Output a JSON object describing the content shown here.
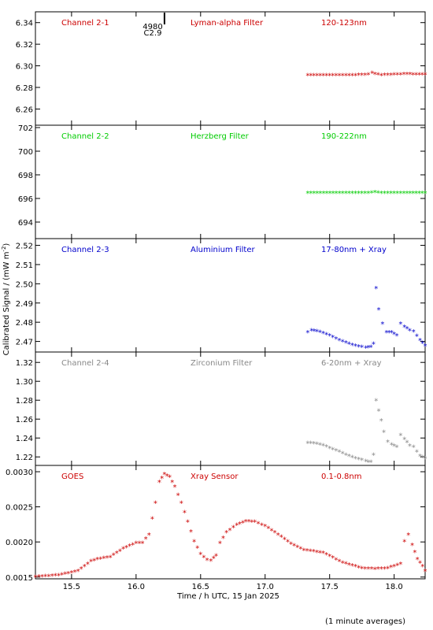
{
  "xlabel": "Time / h UTC, 15 Jan 2025",
  "ylabel": "Calibrated Signal / (mW m",
  "ylabel_sup": "-2",
  "ylabel_end": ")",
  "footnote": "(1 minute averages)",
  "flare_marker": {
    "x": 16.22,
    "label1": "4980",
    "label2": "C2.9"
  },
  "x_axis": {
    "min": 15.22,
    "max": 18.24,
    "ticks": [
      15.5,
      16.0,
      16.5,
      17.0,
      17.5,
      18.0
    ],
    "tick_labels": [
      "15.5",
      "16.0",
      "16.5",
      "17.0",
      "17.5",
      "18.0"
    ]
  },
  "panel_titles": [
    {
      "name": "Channel 2-1",
      "filter": "Lyman-alpha Filter",
      "band": "120-123nm",
      "color": "#cc0000"
    },
    {
      "name": "Channel 2-2",
      "filter": "Herzberg Filter",
      "band": "190-222nm",
      "color": "#00cc00"
    },
    {
      "name": "Channel 2-3",
      "filter": "Aluminium Filter",
      "band": "17-80nm + Xray",
      "color": "#0000cc"
    },
    {
      "name": "Channel 2-4",
      "filter": "Zirconium Filter",
      "band": "6-20nm + Xray",
      "color": "#888888"
    },
    {
      "name": "GOES",
      "filter": "Xray Sensor",
      "band": "0.1-0.8nm",
      "color": "#cc0000"
    }
  ],
  "chart_data": [
    {
      "type": "scatter",
      "title": "Channel 2-1",
      "color": "#cc0000",
      "ylim": [
        6.245,
        6.35
      ],
      "yticks": [
        6.26,
        6.28,
        6.3,
        6.32,
        6.34
      ],
      "ytick_labels": [
        "6.26",
        "6.28",
        "6.30",
        "6.32",
        "6.34"
      ],
      "series": [
        {
          "name": "Channel 2-1",
          "points": [
            [
              17.33,
              6.291
            ],
            [
              17.5,
              6.291
            ],
            [
              17.7,
              6.291
            ],
            [
              17.8,
              6.2915
            ],
            [
              17.83,
              6.293
            ],
            [
              17.85,
              6.292
            ],
            [
              17.9,
              6.291
            ],
            [
              18.0,
              6.2915
            ],
            [
              18.1,
              6.292
            ],
            [
              18.24,
              6.2915
            ]
          ]
        }
      ]
    },
    {
      "type": "scatter",
      "title": "Channel 2-2",
      "color": "#00cc00",
      "ylim": [
        692.6,
        702.2
      ],
      "yticks": [
        694,
        696,
        698,
        700,
        702
      ],
      "ytick_labels": [
        "694",
        "696",
        "698",
        "700",
        "702"
      ],
      "series": [
        {
          "name": "Channel 2-2",
          "points": [
            [
              17.33,
              696.45
            ],
            [
              17.6,
              696.45
            ],
            [
              17.8,
              696.45
            ],
            [
              17.85,
              696.5
            ],
            [
              17.9,
              696.45
            ],
            [
              18.1,
              696.45
            ],
            [
              18.24,
              696.45
            ]
          ]
        }
      ]
    },
    {
      "type": "scatter",
      "title": "Channel 2-3",
      "color": "#0000cc",
      "ylim": [
        2.4645,
        2.5235
      ],
      "yticks": [
        2.47,
        2.48,
        2.49,
        2.5,
        2.51,
        2.52
      ],
      "ytick_labels": [
        "2.47",
        "2.48",
        "2.49",
        "2.50",
        "2.51",
        "2.52"
      ],
      "series": [
        {
          "name": "Channel 2-3",
          "points": [
            [
              17.33,
              2.4745
            ],
            [
              17.36,
              2.4755
            ],
            [
              17.4,
              2.4752
            ],
            [
              17.45,
              2.4742
            ],
            [
              17.5,
              2.4728
            ],
            [
              17.55,
              2.4712
            ],
            [
              17.6,
              2.4698
            ],
            [
              17.65,
              2.4685
            ],
            [
              17.7,
              2.4675
            ],
            [
              17.75,
              2.467
            ],
            [
              17.78,
              2.4665
            ],
            [
              17.8,
              2.4668
            ],
            [
              17.82,
              2.467
            ],
            [
              17.84,
              2.4685
            ],
            [
              17.86,
              2.4975
            ],
            [
              17.88,
              2.4865
            ],
            [
              17.91,
              2.479
            ],
            [
              17.94,
              2.4745
            ],
            [
              17.98,
              2.4745
            ],
            [
              18.02,
              2.473
            ],
            [
              18.05,
              2.479
            ],
            [
              18.08,
              2.4775
            ],
            [
              18.12,
              2.4755
            ],
            [
              18.15,
              2.475
            ],
            [
              18.2,
              2.4705
            ],
            [
              18.24,
              2.4675
            ]
          ]
        }
      ]
    },
    {
      "type": "scatter",
      "title": "Channel 2-4",
      "color": "#888888",
      "ylim": [
        1.211,
        1.331
      ],
      "yticks": [
        1.22,
        1.24,
        1.26,
        1.28,
        1.3,
        1.32
      ],
      "ytick_labels": [
        "1.22",
        "1.24",
        "1.26",
        "1.28",
        "1.30",
        "1.32"
      ],
      "series": [
        {
          "name": "Channel 2-4",
          "points": [
            [
              17.33,
              1.2345
            ],
            [
              17.4,
              1.2335
            ],
            [
              17.45,
              1.232
            ],
            [
              17.5,
              1.229
            ],
            [
              17.55,
              1.2265
            ],
            [
              17.6,
              1.2235
            ],
            [
              17.65,
              1.2205
            ],
            [
              17.7,
              1.218
            ],
            [
              17.75,
              1.2165
            ],
            [
              17.78,
              1.215
            ],
            [
              17.8,
              1.2145
            ],
            [
              17.82,
              1.2145
            ],
            [
              17.84,
              1.222
            ],
            [
              17.86,
              1.2795
            ],
            [
              17.88,
              1.2685
            ],
            [
              17.9,
              1.258
            ],
            [
              17.92,
              1.246
            ],
            [
              17.95,
              1.2355
            ],
            [
              17.98,
              1.2325
            ],
            [
              18.02,
              1.23
            ],
            [
              18.05,
              1.2425
            ],
            [
              18.08,
              1.2385
            ],
            [
              18.12,
              1.2315
            ],
            [
              18.15,
              1.23
            ],
            [
              18.2,
              1.2205
            ],
            [
              18.24,
              1.218
            ]
          ]
        }
      ]
    },
    {
      "type": "scatter",
      "title": "GOES",
      "color": "#cc0000",
      "ylim": [
        0.001475,
        0.00309
      ],
      "yticks": [
        0.0015,
        0.002,
        0.0025,
        0.003
      ],
      "ytick_labels": [
        "0.0015",
        "0.0020",
        "0.0025",
        "0.0030"
      ],
      "series": [
        {
          "name": "GOES",
          "points": [
            [
              15.22,
              0.0015
            ],
            [
              15.4,
              0.00152
            ],
            [
              15.55,
              0.00158
            ],
            [
              15.65,
              0.00172
            ],
            [
              15.7,
              0.00175
            ],
            [
              15.8,
              0.00178
            ],
            [
              15.9,
              0.0019
            ],
            [
              16.0,
              0.00198
            ],
            [
              16.05,
              0.00198
            ],
            [
              16.1,
              0.0021
            ],
            [
              16.15,
              0.00255
            ],
            [
              16.18,
              0.00285
            ],
            [
              16.22,
              0.00296
            ],
            [
              16.26,
              0.00292
            ],
            [
              16.3,
              0.00278
            ],
            [
              16.35,
              0.00255
            ],
            [
              16.4,
              0.00228
            ],
            [
              16.45,
              0.002
            ],
            [
              16.5,
              0.00182
            ],
            [
              16.55,
              0.00174
            ],
            [
              16.58,
              0.00173
            ],
            [
              16.62,
              0.0018
            ],
            [
              16.65,
              0.00198
            ],
            [
              16.7,
              0.00213
            ],
            [
              16.78,
              0.00224
            ],
            [
              16.85,
              0.00229
            ],
            [
              16.92,
              0.00228
            ],
            [
              17.0,
              0.00222
            ],
            [
              17.1,
              0.0021
            ],
            [
              17.2,
              0.00197
            ],
            [
              17.3,
              0.00188
            ],
            [
              17.45,
              0.00184
            ],
            [
              17.6,
              0.0017
            ],
            [
              17.75,
              0.00162
            ],
            [
              17.85,
              0.00161
            ],
            [
              17.95,
              0.00162
            ],
            [
              18.0,
              0.00165
            ],
            [
              18.05,
              0.00168
            ],
            [
              18.08,
              0.002
            ],
            [
              18.11,
              0.0021
            ],
            [
              18.14,
              0.00195
            ],
            [
              18.18,
              0.00175
            ],
            [
              18.22,
              0.00165
            ],
            [
              18.24,
              0.00158
            ]
          ]
        }
      ]
    }
  ]
}
